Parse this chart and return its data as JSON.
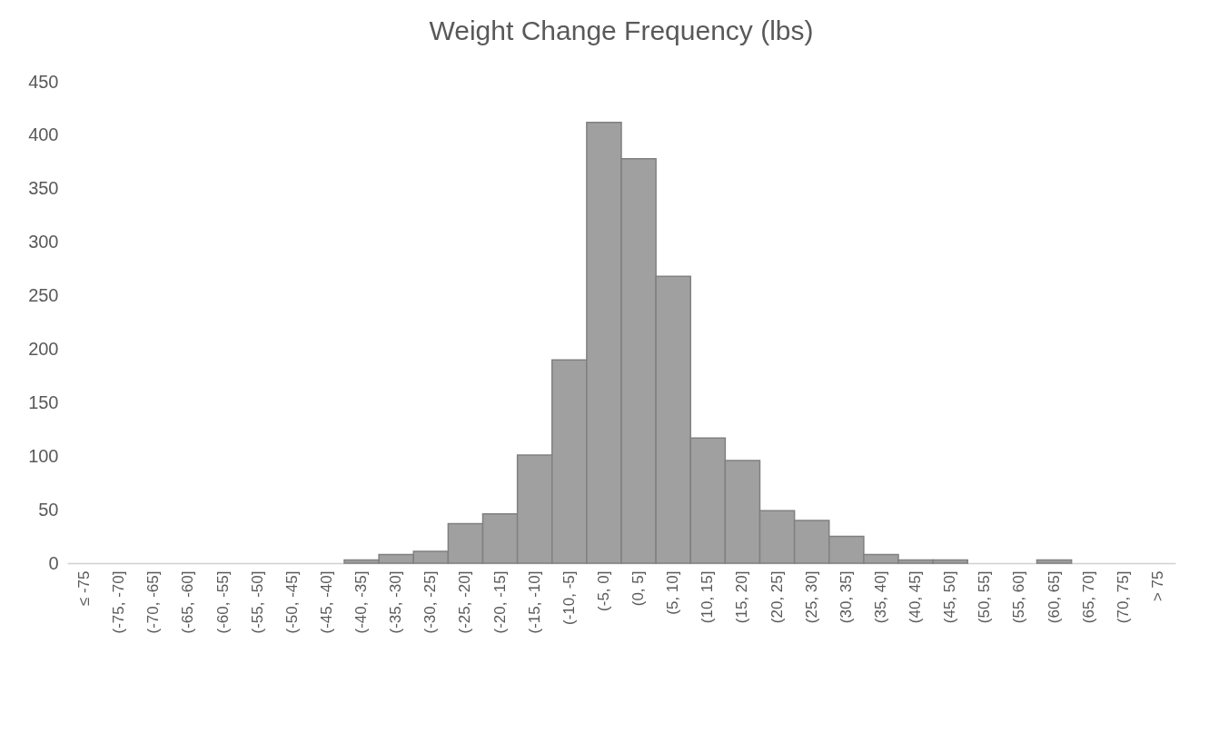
{
  "chart_data": {
    "type": "bar",
    "title": "Weight Change Frequency (lbs)",
    "categories": [
      "≤ -75",
      "(-75, -70]",
      "(-70, -65]",
      "(-65, -60]",
      "(-60, -55]",
      "(-55, -50]",
      "(-50, -45]",
      "(-45, -40]",
      "(-40, -35]",
      "(-35, -30]",
      "(-30, -25]",
      "(-25, -20]",
      "(-20, -15]",
      "(-15, -10]",
      "(-10, -5]",
      "(-5, 0]",
      "(0, 5]",
      "(5, 10]",
      "(10, 15]",
      "(15, 20]",
      "(20, 25]",
      "(25, 30]",
      "(30, 35]",
      "(35, 40]",
      "(40, 45]",
      "(45, 50]",
      "(50, 55]",
      "(55, 60]",
      "(60, 65]",
      "(65, 70]",
      "(70, 75]",
      "> 75"
    ],
    "values": [
      0,
      0,
      0,
      0,
      0,
      0,
      0,
      0,
      3,
      8,
      11,
      37,
      46,
      101,
      190,
      412,
      378,
      268,
      117,
      96,
      49,
      40,
      25,
      8,
      3,
      3,
      0,
      0,
      3,
      0,
      0,
      0
    ],
    "color": "#a0a0a0",
    "ylim": [
      0,
      450
    ],
    "yticks": [
      0,
      50,
      100,
      150,
      200,
      250,
      300,
      350,
      400,
      450
    ],
    "grid": false
  }
}
